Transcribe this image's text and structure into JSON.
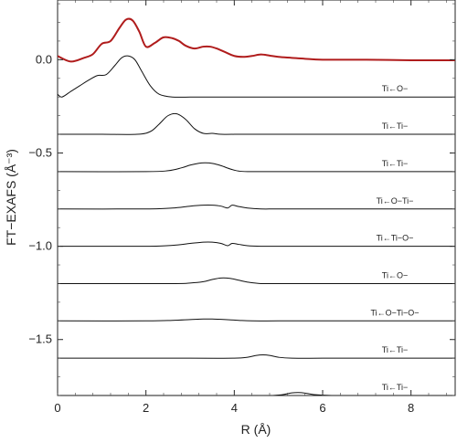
{
  "chart_data": {
    "type": "line",
    "title": "",
    "xlabel": "R (Å)",
    "ylabel": "FT−EXAFS (Å⁻³)",
    "xlim": [
      0,
      9
    ],
    "ylim": [
      -1.8,
      0.32
    ],
    "xticks": [
      0,
      2,
      4,
      6,
      8
    ],
    "xtick_labels": [
      "0",
      "2",
      "4",
      "6",
      "8"
    ],
    "yticks": [
      0.0,
      -0.5,
      -1.0,
      -1.5
    ],
    "ytick_labels": [
      "0.0",
      "−0.5",
      "−1.0",
      "−1.5"
    ],
    "grid": false,
    "legend": "none",
    "colors": {
      "experiment": "#b01c1c",
      "path": "#111111"
    },
    "series": [
      {
        "name": "",
        "label": "",
        "baseline": 0.0,
        "color": "#b01c1c",
        "x": [
          0.0,
          0.3,
          0.6,
          0.8,
          1.0,
          1.2,
          1.4,
          1.55,
          1.7,
          1.85,
          2.0,
          2.2,
          2.4,
          2.6,
          2.75,
          2.9,
          3.1,
          3.3,
          3.45,
          3.6,
          3.8,
          4.0,
          4.2,
          4.4,
          4.6,
          4.8,
          5.0,
          5.3,
          5.6,
          6.0,
          7.0,
          8.0,
          9.0
        ],
        "y": [
          0.02,
          -0.01,
          0.01,
          0.03,
          0.085,
          0.1,
          0.17,
          0.215,
          0.21,
          0.15,
          0.07,
          0.09,
          0.12,
          0.115,
          0.1,
          0.075,
          0.06,
          0.07,
          0.07,
          0.06,
          0.04,
          0.02,
          0.015,
          0.02,
          0.028,
          0.022,
          0.015,
          0.01,
          0.005,
          0.0,
          0.0,
          -0.003,
          -0.003
        ]
      },
      {
        "name": "",
        "label": "Ti←O−",
        "baseline": -0.2,
        "color": "#111111",
        "x": [
          0.0,
          0.1,
          0.3,
          0.5,
          0.7,
          0.9,
          1.1,
          1.3,
          1.45,
          1.6,
          1.75,
          1.9,
          2.1,
          2.3,
          2.6,
          3.0,
          3.5,
          4.0,
          5.0,
          6.0,
          7.0,
          8.0,
          9.0
        ],
        "y": [
          -0.185,
          -0.2,
          -0.17,
          -0.14,
          -0.11,
          -0.085,
          -0.08,
          -0.03,
          0.01,
          0.02,
          0.0,
          -0.06,
          -0.14,
          -0.185,
          -0.2,
          -0.2,
          -0.2,
          -0.2,
          -0.2,
          -0.2,
          -0.2,
          -0.2,
          -0.2
        ]
      },
      {
        "name": "",
        "label": "Ti←Ti−",
        "baseline": -0.4,
        "color": "#111111",
        "x": [
          0.0,
          1.0,
          1.8,
          2.1,
          2.3,
          2.5,
          2.7,
          2.9,
          3.1,
          3.3,
          3.5,
          3.7,
          4.0,
          5.0,
          6.0,
          7.0,
          8.0,
          9.0
        ],
        "y": [
          -0.4,
          -0.4,
          -0.4,
          -0.385,
          -0.345,
          -0.3,
          -0.29,
          -0.32,
          -0.37,
          -0.395,
          -0.395,
          -0.4,
          -0.4,
          -0.4,
          -0.4,
          -0.4,
          -0.4,
          -0.4
        ]
      },
      {
        "name": "",
        "label": "Ti←Ti−",
        "baseline": -0.6,
        "color": "#111111",
        "x": [
          0.0,
          2.0,
          2.5,
          2.8,
          3.0,
          3.2,
          3.35,
          3.5,
          3.7,
          3.9,
          4.1,
          4.3,
          5.0,
          6.0,
          7.0,
          8.0,
          9.0
        ],
        "y": [
          -0.6,
          -0.6,
          -0.595,
          -0.58,
          -0.565,
          -0.555,
          -0.553,
          -0.556,
          -0.568,
          -0.585,
          -0.597,
          -0.6,
          -0.6,
          -0.6,
          -0.6,
          -0.6,
          -0.6
        ]
      },
      {
        "name": "",
        "label": "Ti←O−Ti−",
        "baseline": -0.8,
        "color": "#111111",
        "x": [
          0.0,
          2.0,
          2.6,
          3.0,
          3.3,
          3.5,
          3.7,
          3.85,
          3.95,
          4.1,
          4.3,
          4.6,
          5.0,
          6.0,
          7.0,
          8.0,
          9.0
        ],
        "y": [
          -0.8,
          -0.8,
          -0.795,
          -0.785,
          -0.78,
          -0.78,
          -0.785,
          -0.795,
          -0.78,
          -0.787,
          -0.795,
          -0.8,
          -0.8,
          -0.8,
          -0.8,
          -0.8,
          -0.8
        ]
      },
      {
        "name": "",
        "label": "Ti←Ti−O−",
        "baseline": -1.0,
        "color": "#111111",
        "x": [
          0.0,
          2.0,
          2.6,
          3.0,
          3.3,
          3.5,
          3.7,
          3.85,
          3.95,
          4.1,
          4.3,
          4.6,
          5.0,
          6.0,
          7.0,
          8.0,
          9.0
        ],
        "y": [
          -1.0,
          -1.0,
          -0.995,
          -0.985,
          -0.978,
          -0.978,
          -0.985,
          -0.997,
          -0.985,
          -0.99,
          -0.997,
          -1.0,
          -1.0,
          -1.0,
          -1.0,
          -1.0,
          -1.0
        ]
      },
      {
        "name": "",
        "label": "Ti←O−",
        "baseline": -1.2,
        "color": "#111111",
        "x": [
          0.0,
          2.5,
          3.0,
          3.3,
          3.5,
          3.7,
          3.9,
          4.1,
          4.3,
          4.6,
          5.0,
          6.0,
          7.0,
          8.0,
          9.0
        ],
        "y": [
          -1.2,
          -1.2,
          -1.197,
          -1.19,
          -1.178,
          -1.17,
          -1.172,
          -1.182,
          -1.192,
          -1.2,
          -1.2,
          -1.2,
          -1.2,
          -1.2,
          -1.2
        ]
      },
      {
        "name": "",
        "label": "Ti←O−Ti−O−",
        "baseline": -1.4,
        "color": "#111111",
        "x": [
          0.0,
          2.0,
          2.6,
          3.0,
          3.3,
          3.5,
          3.8,
          4.1,
          4.4,
          5.0,
          6.0,
          7.0,
          8.0,
          9.0
        ],
        "y": [
          -1.4,
          -1.4,
          -1.397,
          -1.393,
          -1.39,
          -1.39,
          -1.393,
          -1.397,
          -1.4,
          -1.4,
          -1.4,
          -1.4,
          -1.4,
          -1.4
        ]
      },
      {
        "name": "",
        "label": "Ti←Ti−",
        "baseline": -1.6,
        "color": "#111111",
        "x": [
          0.0,
          3.0,
          4.0,
          4.3,
          4.5,
          4.65,
          4.8,
          5.0,
          5.3,
          6.0,
          7.0,
          8.0,
          9.0
        ],
        "y": [
          -1.6,
          -1.6,
          -1.6,
          -1.595,
          -1.585,
          -1.582,
          -1.585,
          -1.595,
          -1.6,
          -1.6,
          -1.6,
          -1.6,
          -1.6
        ]
      },
      {
        "name": "",
        "label": "Ti←Ti−",
        "baseline": -1.8,
        "color": "#111111",
        "x": [
          0.0,
          4.0,
          4.8,
          5.1,
          5.3,
          5.45,
          5.6,
          5.8,
          6.2,
          7.0,
          8.0,
          9.0
        ],
        "y": [
          -1.8,
          -1.8,
          -1.8,
          -1.795,
          -1.786,
          -1.784,
          -1.787,
          -1.795,
          -1.8,
          -1.8,
          -1.8,
          -1.8
        ]
      }
    ]
  }
}
